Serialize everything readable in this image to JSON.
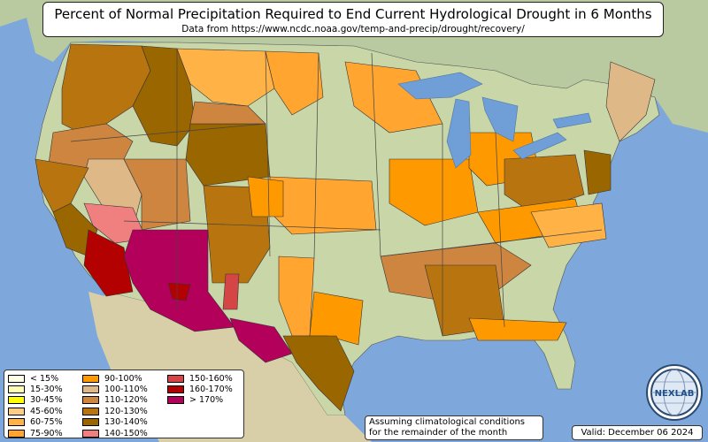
{
  "header": {
    "title": "Percent of Normal Precipitation Required to End Current Hydrological Drought in 6 Months",
    "subtitle": "Data from https://www.ncdc.noaa.gov/temp-and-precip/drought/recovery/"
  },
  "legend": {
    "items": [
      {
        "label": "< 15%",
        "color": "#ffffe5"
      },
      {
        "label": "15-30%",
        "color": "#ffffb3"
      },
      {
        "label": "30-45%",
        "color": "#ffff00"
      },
      {
        "label": "45-60%",
        "color": "#ffcc88"
      },
      {
        "label": "60-75%",
        "color": "#ffb347"
      },
      {
        "label": "75-90%",
        "color": "#ffa530"
      },
      {
        "label": "90-100%",
        "color": "#ff9900"
      },
      {
        "label": "100-110%",
        "color": "#deb887"
      },
      {
        "label": "110-120%",
        "color": "#cd853f"
      },
      {
        "label": "120-130%",
        "color": "#b8750f"
      },
      {
        "label": "130-140%",
        "color": "#996600"
      },
      {
        "label": "140-150%",
        "color": "#f08080"
      },
      {
        "label": "150-160%",
        "color": "#d64545"
      },
      {
        "label": "160-170%",
        "color": "#b30000"
      },
      {
        "label": "> 170%",
        "color": "#b3005a"
      }
    ]
  },
  "note": {
    "line1": "Assuming climatological conditions",
    "line2": "for the remainder of the month"
  },
  "valid": {
    "text": "Valid: December 06 2024"
  },
  "logo": {
    "text": "NEXLAB"
  },
  "colors": {
    "ocean": "#7ea8dc",
    "land": "#c9d6a8",
    "canada": "#b9c9a0",
    "mexico": "#d8cfa8",
    "lakes": "#6f9fd6"
  }
}
